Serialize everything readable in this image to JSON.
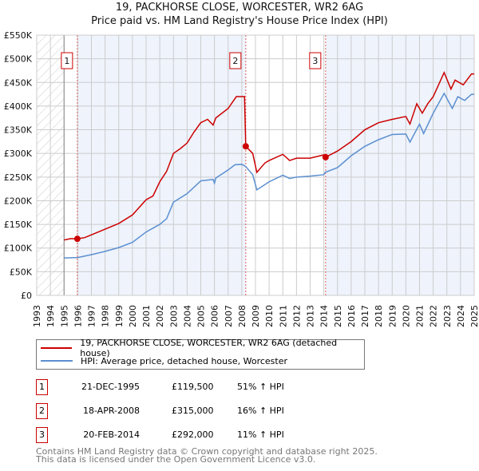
{
  "chart_data": {
    "type": "line",
    "title": "19, PACKHORSE CLOSE, WORCESTER, WR2 6AG",
    "subtitle": "Price paid vs. HM Land Registry's House Price Index (HPI)",
    "xlim": [
      1993,
      2025
    ],
    "ylim": [
      0,
      550000
    ],
    "y_ticks": [
      "£0",
      "£50K",
      "£100K",
      "£150K",
      "£200K",
      "£250K",
      "£300K",
      "£350K",
      "£400K",
      "£450K",
      "£500K",
      "£550K"
    ],
    "x_ticks": [
      "1993",
      "1994",
      "1995",
      "1996",
      "1997",
      "1998",
      "1999",
      "2000",
      "2001",
      "2002",
      "2003",
      "2004",
      "2005",
      "2006",
      "2007",
      "2008",
      "2009",
      "2010",
      "2011",
      "2012",
      "2013",
      "2014",
      "2015",
      "2016",
      "2017",
      "2018",
      "2019",
      "2020",
      "2021",
      "2022",
      "2023",
      "2024",
      "2025"
    ],
    "grid": true,
    "series": [
      {
        "name": "19, PACKHORSE CLOSE, WORCESTER, WR2 6AG (detached house)",
        "color": "#cc0000",
        "x": [
          1995,
          1995.5,
          1995.97,
          1996.5,
          1997,
          1998,
          1999,
          2000,
          2001,
          2001.5,
          2002,
          2002.5,
          2003,
          2003.5,
          2004,
          2004.5,
          2005,
          2005.5,
          2005.9,
          2006.1,
          2007,
          2007.6,
          2008.2,
          2008.29,
          2008.8,
          2009.1,
          2009.7,
          2010,
          2011,
          2011.5,
          2012,
          2013,
          2014.0,
          2014.13,
          2015,
          2016,
          2017,
          2018,
          2019,
          2020,
          2020.3,
          2020.8,
          2021.2,
          2021.6,
          2022,
          2022.8,
          2023.3,
          2023.6,
          2024.2,
          2024.8,
          2025
        ],
        "y": [
          117000,
          120000,
          119500,
          122000,
          128000,
          140000,
          152000,
          170000,
          202000,
          210000,
          240000,
          262000,
          300000,
          310000,
          322000,
          345000,
          365000,
          372000,
          360000,
          375000,
          395000,
          420000,
          420000,
          315000,
          300000,
          260000,
          280000,
          285000,
          298000,
          285000,
          290000,
          290000,
          297000,
          292000,
          305000,
          325000,
          350000,
          365000,
          372000,
          378000,
          362000,
          405000,
          385000,
          405000,
          420000,
          471000,
          436000,
          455000,
          445000,
          468000,
          468000
        ]
      },
      {
        "name": "HPI: Average price, detached house, Worcester",
        "color": "#5b8fd0",
        "x": [
          1995,
          1996,
          1997,
          1998,
          1999,
          2000,
          2001,
          2002,
          2002.5,
          2003,
          2004,
          2005,
          2005.9,
          2006,
          2006.1,
          2007,
          2007.5,
          2008,
          2008.3,
          2008.8,
          2009.1,
          2010,
          2011,
          2011.5,
          2012,
          2013,
          2014,
          2014.1,
          2015,
          2016,
          2017,
          2018,
          2019,
          2020,
          2020.3,
          2021,
          2021.3,
          2022,
          2022.8,
          2023.4,
          2023.8,
          2024.3,
          2024.8,
          2025
        ],
        "y": [
          79000,
          80000,
          86000,
          93000,
          101000,
          112000,
          134000,
          150000,
          162000,
          197000,
          215000,
          242000,
          245000,
          237000,
          248000,
          265000,
          276000,
          277000,
          272000,
          255000,
          223000,
          240000,
          254000,
          247000,
          250000,
          252000,
          255000,
          260000,
          270000,
          295000,
          315000,
          329000,
          340000,
          341000,
          324000,
          362000,
          342000,
          385000,
          427000,
          395000,
          420000,
          412000,
          425000,
          425000
        ]
      }
    ],
    "sales": [
      {
        "label": "1",
        "date": "21-DEC-1995",
        "x": 1995.97,
        "price": 119500,
        "price_text": "£119,500",
        "hpi": "51% ↑ HPI"
      },
      {
        "label": "2",
        "date": "18-APR-2008",
        "x": 2008.29,
        "price": 315000,
        "price_text": "£315,000",
        "hpi": "16% ↑ HPI"
      },
      {
        "label": "3",
        "date": "20-FEB-2014",
        "x": 2014.13,
        "price": 292000,
        "price_text": "£292,000",
        "hpi": "11% ↑ HPI"
      }
    ]
  },
  "footer": {
    "line1": "Contains HM Land Registry data © Crown copyright and database right 2025.",
    "line2": "This data is licensed under the Open Government Licence v3.0."
  }
}
